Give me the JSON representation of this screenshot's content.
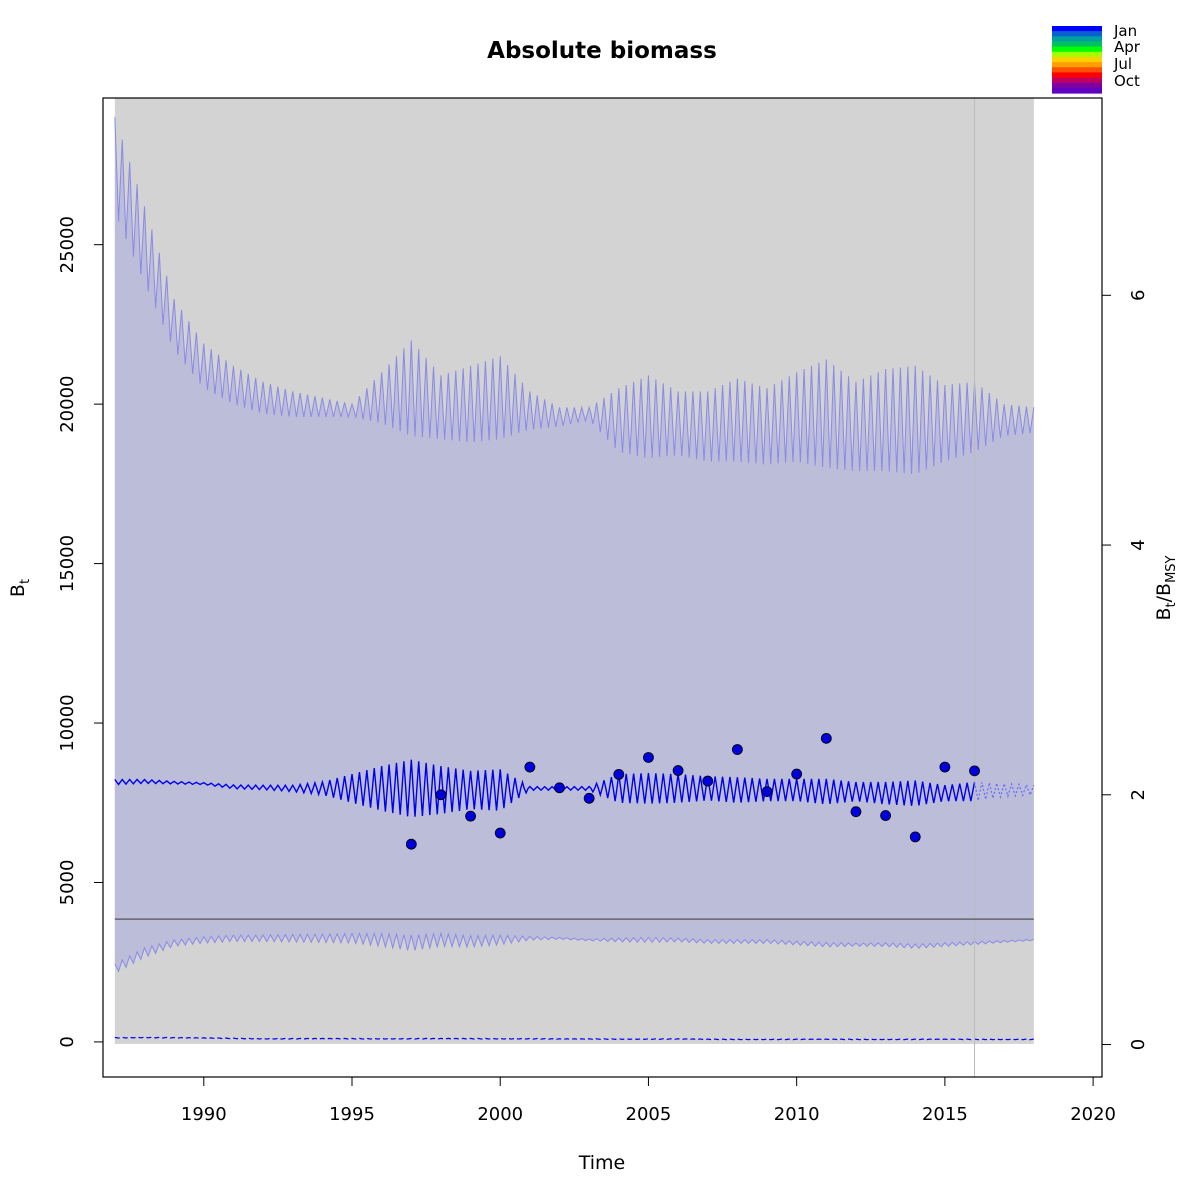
{
  "chart_data": {
    "type": "line",
    "title": "Absolute biomass",
    "xlabel": "Time",
    "ylabel": {
      "main": "B",
      "sub": "t"
    },
    "y2label": {
      "main": "B",
      "sub1": "t",
      "sep": "/B",
      "sub2": "MSY"
    },
    "xlim": [
      1986.6,
      2020.3
    ],
    "ylim": [
      -1100,
      29600
    ],
    "y2lim": [
      -0.26,
      7.58
    ],
    "x_ticks": [
      "1990",
      "1995",
      "2000",
      "2005",
      "2010",
      "2015",
      "2020"
    ],
    "y_ticks": [
      "0",
      "5000",
      "10000",
      "15000",
      "20000",
      "25000"
    ],
    "y2_ticks": [
      "0",
      "2",
      "4",
      "6"
    ],
    "grid": false,
    "legend_position": "top-right",
    "legend": {
      "labels": [
        "Jan",
        "Apr",
        "Jul",
        "Oct"
      ],
      "colors": [
        "#0000ff",
        "#0a60d0",
        "#00a0a0",
        "#00c060",
        "#00ff00",
        "#a0ff00",
        "#ffd000",
        "#ffa000",
        "#ff5000",
        "#ff0000",
        "#c00060",
        "#8000a0",
        "#6000c0"
      ]
    },
    "bmsy": 3850,
    "forecast_start": 2016.0,
    "series_start": 1987.0,
    "series_end": 2018.0,
    "biomass_quarterly": {
      "years": [
        1987,
        1988,
        1989,
        1990,
        1991,
        1992,
        1993,
        1994,
        1995,
        1996,
        1997,
        1998,
        1999,
        2000,
        2001,
        2002,
        2003,
        2004,
        2005,
        2006,
        2007,
        2008,
        2009,
        2010,
        2011,
        2012,
        2013,
        2014,
        2015,
        2016,
        2017,
        2018
      ],
      "mean": [
        8150,
        8170,
        8130,
        8100,
        8000,
        7980,
        7950,
        7950,
        7950,
        7950,
        7950,
        7900,
        7900,
        7900,
        7950,
        7950,
        7950,
        7950,
        7950,
        7950,
        7950,
        7900,
        7900,
        7900,
        7850,
        7850,
        7800,
        7800,
        7800,
        7850,
        7900,
        7900
      ],
      "amplitude": [
        80,
        60,
        40,
        30,
        60,
        70,
        100,
        200,
        450,
        700,
        900,
        750,
        600,
        650,
        60,
        50,
        60,
        450,
        480,
        450,
        380,
        400,
        350,
        350,
        400,
        300,
        350,
        400,
        250,
        300,
        200,
        150
      ],
      "upper_ci": [
        27500,
        25000,
        22500,
        21200,
        20600,
        20200,
        20000,
        19900,
        19800,
        20200,
        20500,
        19900,
        20000,
        20200,
        19800,
        19600,
        19700,
        19500,
        19600,
        19400,
        19300,
        19500,
        19300,
        19600,
        19700,
        19300,
        19500,
        19500,
        19400,
        19600,
        19500,
        19500
      ],
      "upper_amp": [
        1500,
        1200,
        800,
        700,
        600,
        500,
        400,
        300,
        200,
        800,
        1500,
        1000,
        1200,
        1300,
        600,
        300,
        200,
        1000,
        1300,
        1000,
        1100,
        1300,
        1200,
        1400,
        1700,
        1400,
        1600,
        1700,
        1200,
        1100,
        500,
        400
      ],
      "lower_ci": [
        2300,
        2800,
        3100,
        3200,
        3250,
        3250,
        3250,
        3250,
        3250,
        3200,
        3100,
        3200,
        3150,
        3200,
        3250,
        3250,
        3200,
        3200,
        3200,
        3200,
        3150,
        3150,
        3150,
        3100,
        3050,
        3050,
        3050,
        3000,
        3050,
        3100,
        3150,
        3200
      ],
      "lower_amp": [
        150,
        150,
        100,
        100,
        100,
        100,
        120,
        130,
        150,
        200,
        250,
        200,
        180,
        150,
        60,
        30,
        30,
        60,
        80,
        60,
        60,
        60,
        60,
        60,
        70,
        50,
        60,
        70,
        60,
        50,
        30,
        20
      ],
      "lower_line": [
        130,
        140,
        130,
        120,
        110,
        100,
        100,
        100,
        100,
        100,
        100,
        100,
        100,
        100,
        100,
        90,
        90,
        90,
        90,
        90,
        80,
        80,
        80,
        80,
        80,
        80,
        80,
        80,
        80,
        80,
        80,
        80
      ]
    },
    "index_points": {
      "x": [
        1997.0,
        1998.0,
        1999.0,
        2000.0,
        2001.0,
        2002.0,
        2003.0,
        2004.0,
        2005.0,
        2006.0,
        2007.0,
        2008.0,
        2009.0,
        2010.0,
        2011.0,
        2012.0,
        2013.0,
        2014.0,
        2015.0,
        2016.0
      ],
      "y": [
        6200,
        7750,
        7080,
        6550,
        8620,
        7970,
        7640,
        8390,
        8920,
        8510,
        8180,
        9170,
        7850,
        8400,
        9520,
        7220,
        7100,
        6430,
        8620,
        8500
      ]
    },
    "colors": {
      "ci_fill": "#bcbdd9",
      "ci_line": "#8a8ae8",
      "mean_line": "#0000ee",
      "forecast_line": "#6a6aff",
      "points": "#0000dd",
      "bmsy_line": "#555555",
      "background": "#d3d3d3",
      "forecast_vline": "#bbbbbb"
    }
  }
}
